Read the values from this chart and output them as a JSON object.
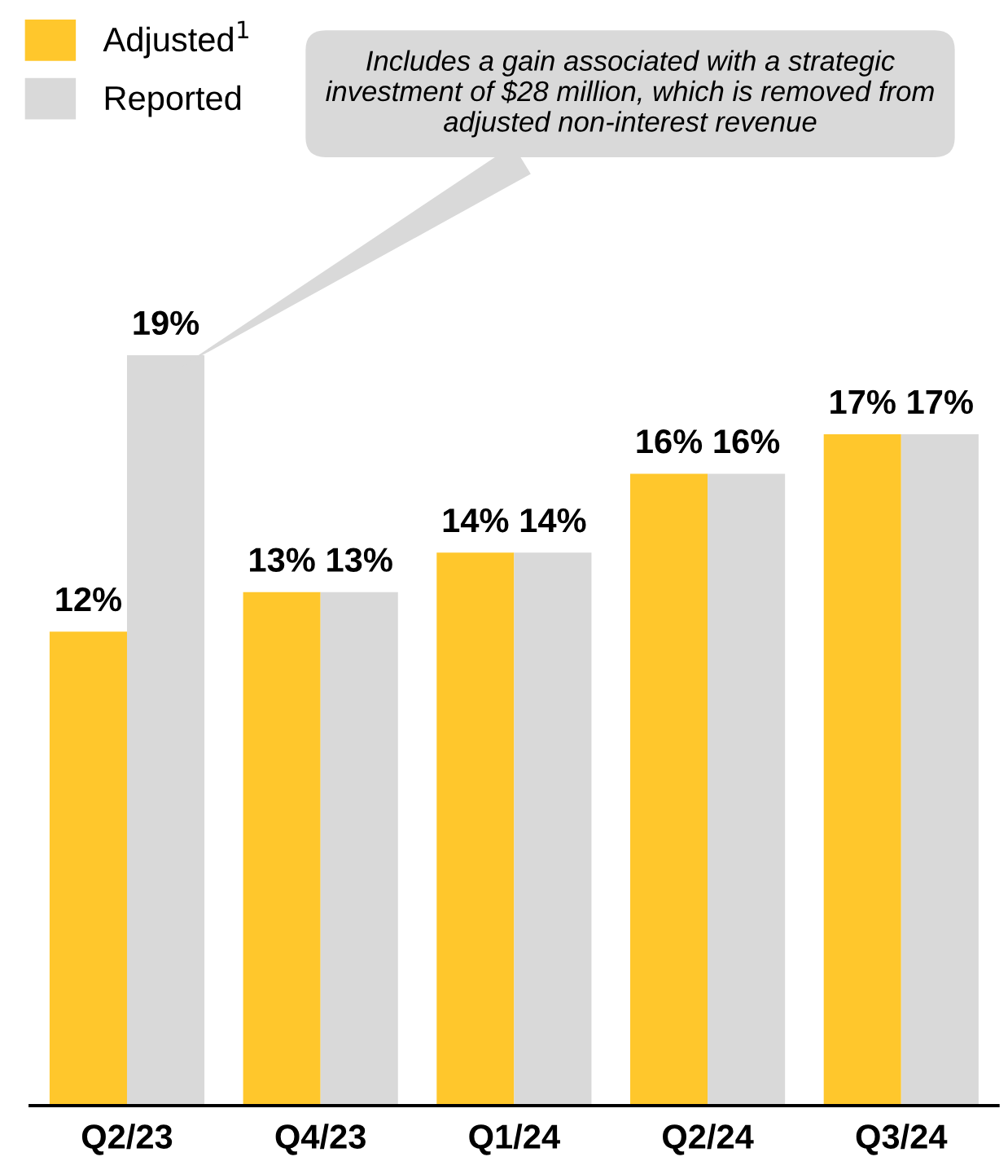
{
  "chart_data": {
    "type": "bar",
    "categories": [
      "Q2/23",
      "Q4/23",
      "Q1/24",
      "Q2/24",
      "Q3/24"
    ],
    "series": [
      {
        "name": "Adjusted$^{1}$",
        "color": "#ffc72c",
        "values": [
          12,
          13,
          14,
          16,
          17
        ],
        "value_labels": [
          "12%",
          "13%",
          "14%",
          "16%",
          "17%"
        ]
      },
      {
        "name": "Reported",
        "color": "#d9d9d9",
        "values": [
          19,
          13,
          14,
          16,
          17
        ],
        "value_labels": [
          "19%",
          "13%",
          "14%",
          "16%",
          "17%"
        ]
      }
    ],
    "annotations": [
      "Includes a gain associated with a strategic investment of $28 million, which is removed from adjusted non-interest revenue"
    ],
    "legend": "top left",
    "grid": false
  }
}
